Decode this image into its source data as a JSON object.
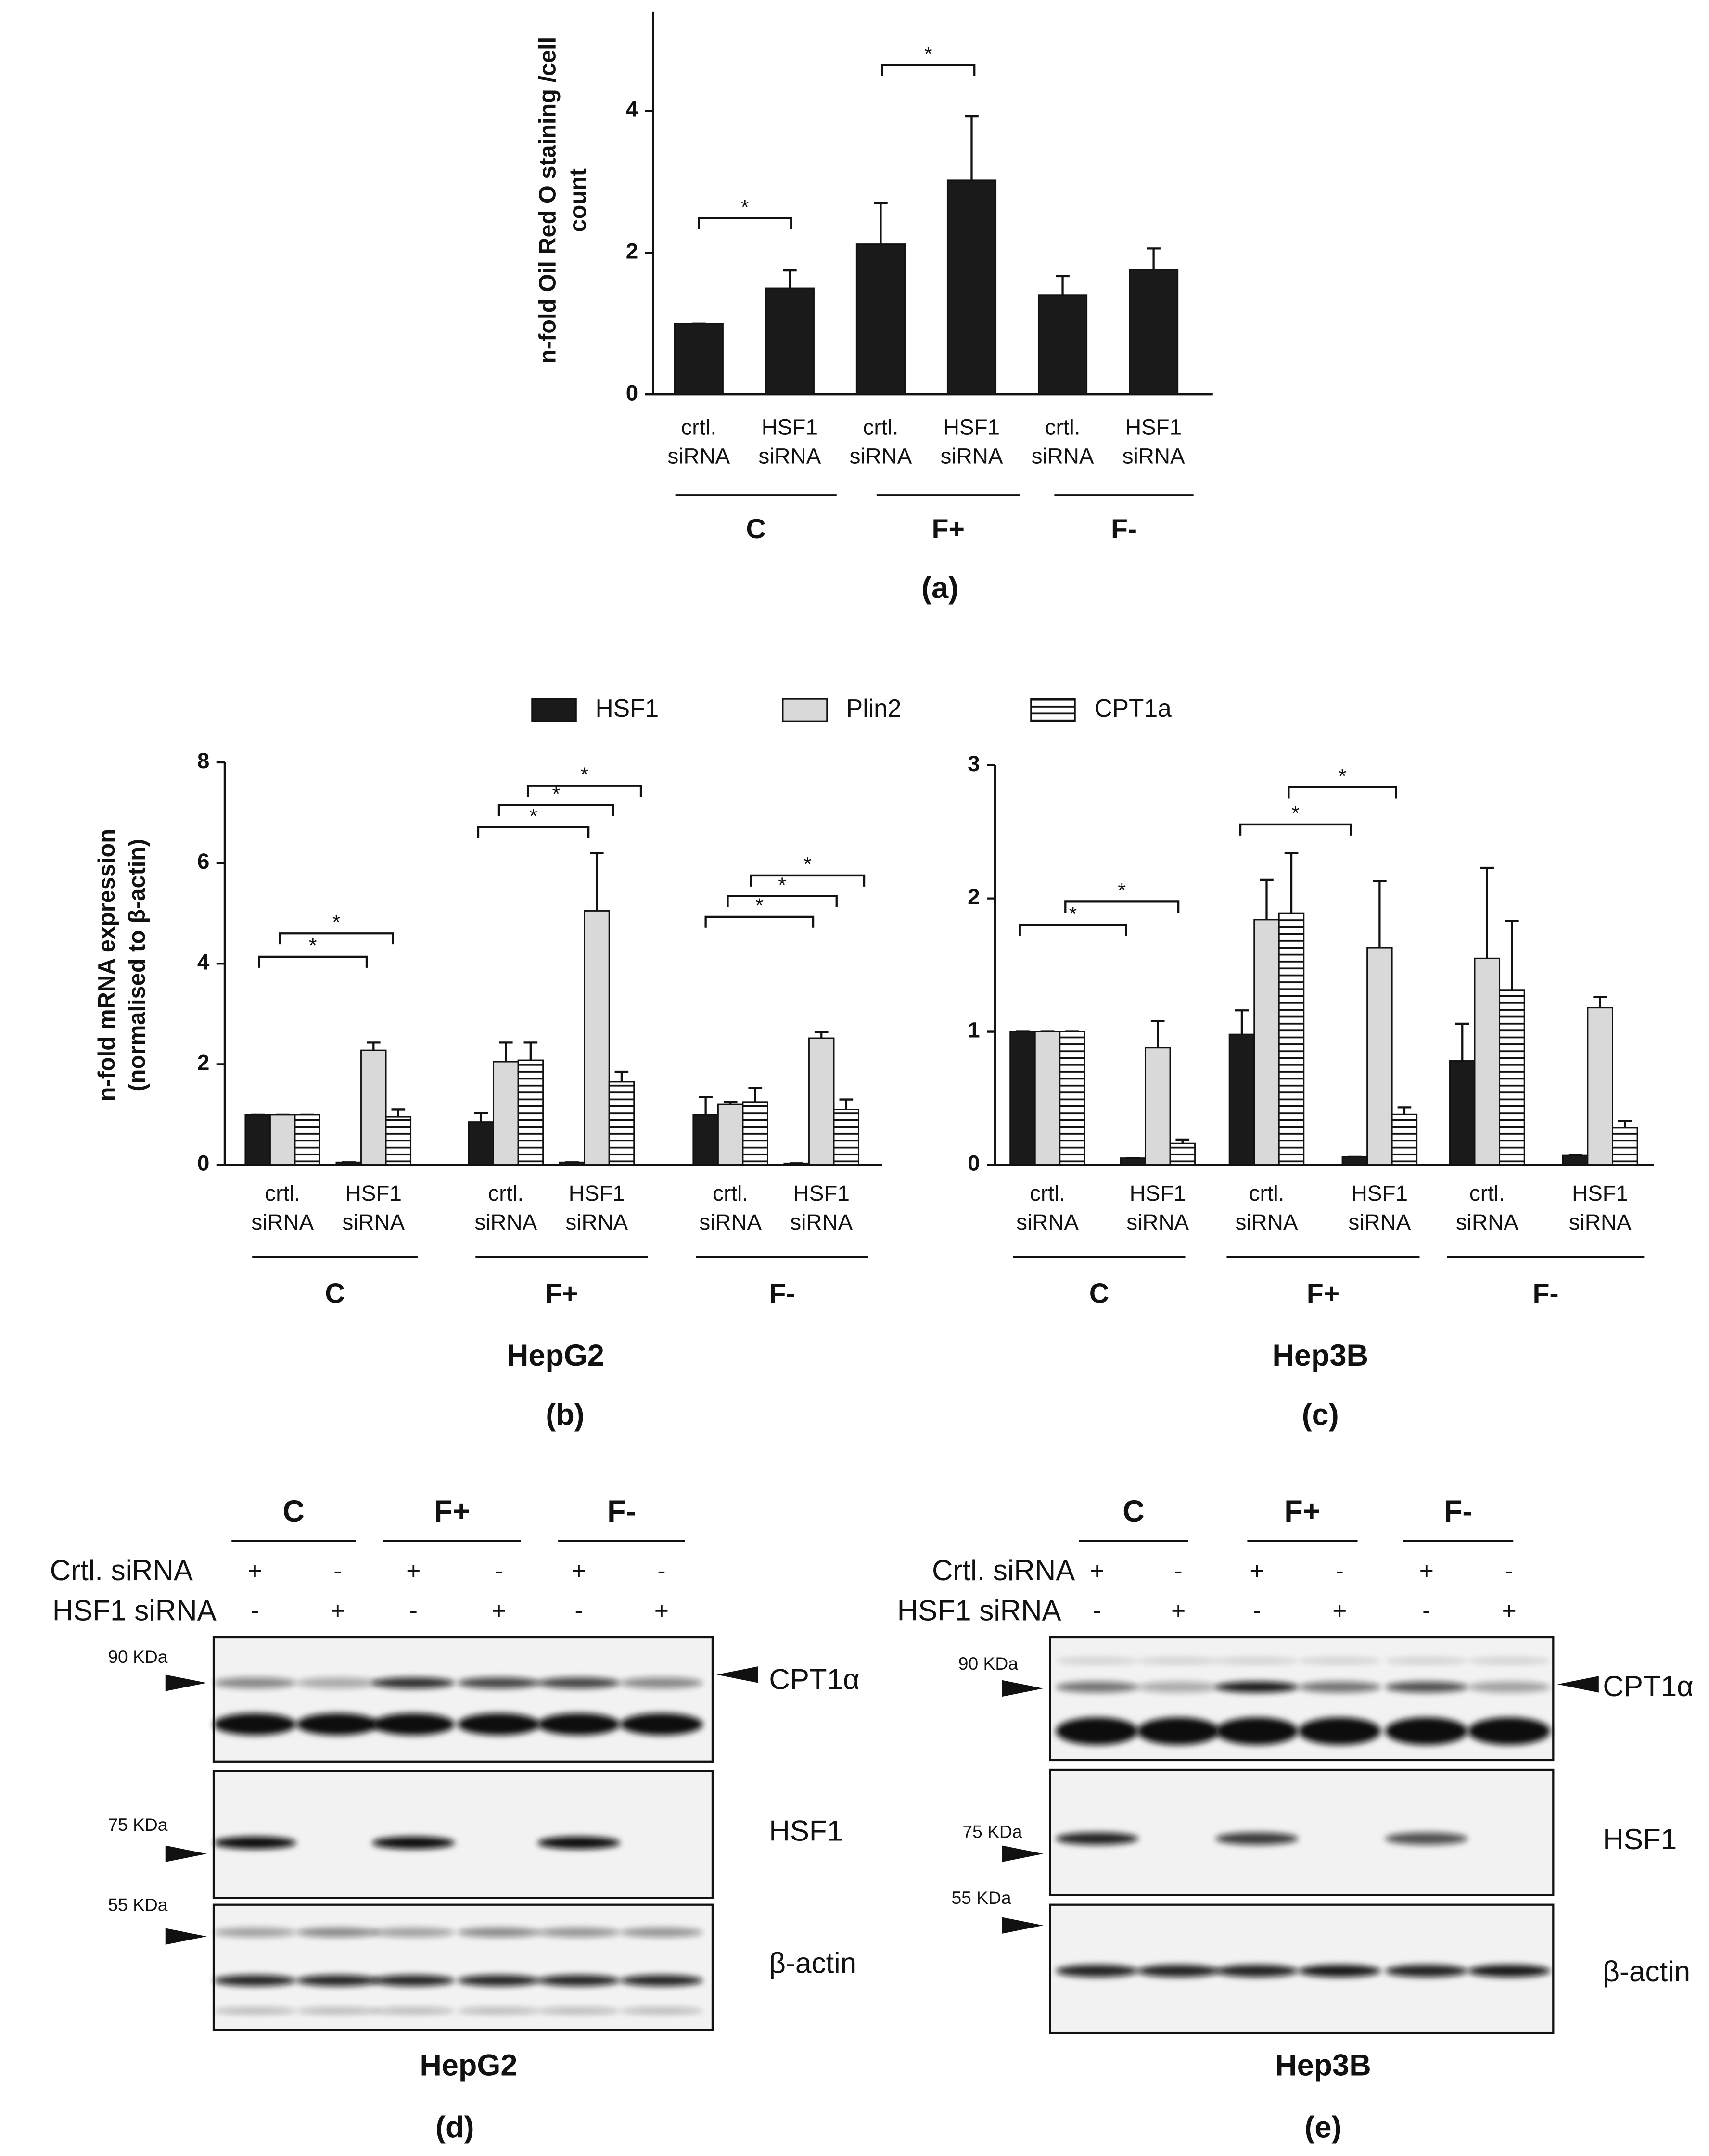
{
  "chart_data": [
    {
      "type": "bar",
      "panel": "(a)",
      "y_label": "n-fold Oil Red O staining /cell count",
      "categories": [
        "crtl. siRNA",
        "HSF1 siRNA",
        "crtl. siRNA",
        "HSF1 siRNA",
        "crtl. siRNA",
        "HSF1 siRNA"
      ],
      "groups": [
        "C",
        "F+",
        "F-"
      ],
      "values": [
        1.0,
        1.5,
        2.12,
        3.02,
        1.4,
        1.76
      ],
      "errors": [
        0,
        0.25,
        0.58,
        0.9,
        0.27,
        0.3
      ],
      "color": "#1a1a1a",
      "ylim": [
        0,
        5.4
      ],
      "yticks": [
        0,
        2,
        4
      ],
      "annotations": [
        "*",
        "*"
      ]
    },
    {
      "type": "bar",
      "panel": "(b)",
      "cell_line": "HepG2",
      "y_label": "n-fold mRNA expression (normalised to β-actin)",
      "categories": [
        "crtl. siRNA",
        "HSF1 siRNA",
        "crtl. siRNA",
        "HSF1 siRNA",
        "crtl. siRNA",
        "HSF1 siRNA"
      ],
      "groups": [
        "C",
        "F+",
        "F-"
      ],
      "series": [
        {
          "name": "HSF1",
          "color": "#1a1a1a",
          "values": [
            1.0,
            0.05,
            0.85,
            0.05,
            1.0,
            0.03
          ],
          "errors": [
            0,
            0,
            0.18,
            0,
            0.35,
            0
          ]
        },
        {
          "name": "Plin2",
          "color": "#d9d9d9",
          "values": [
            1.0,
            2.28,
            2.05,
            5.05,
            1.2,
            2.52
          ],
          "errors": [
            0,
            0.15,
            0.38,
            1.15,
            0.05,
            0.12
          ]
        },
        {
          "name": "CPT1a",
          "color": "#ffffff",
          "hatch": "horizontal",
          "values": [
            1.0,
            0.95,
            2.08,
            1.65,
            1.25,
            1.1
          ],
          "errors": [
            0,
            0.15,
            0.35,
            0.2,
            0.28,
            0.2
          ]
        }
      ],
      "ylim": [
        0,
        8
      ],
      "yticks": [
        0,
        2,
        4,
        6,
        8
      ],
      "annotations": [
        "*",
        "*",
        "*",
        "*",
        "*",
        "*",
        "*",
        "*"
      ]
    },
    {
      "type": "bar",
      "panel": "(c)",
      "cell_line": "Hep3B",
      "categories": [
        "crtl. siRNA",
        "HSF1 siRNA",
        "crtl. siRNA",
        "HSF1 siRNA",
        "crtl. siRNA",
        "HSF1 siRNA"
      ],
      "groups": [
        "C",
        "F+",
        "F-"
      ],
      "series": [
        {
          "color": "#1a1a1a",
          "values": [
            1.0,
            0.05,
            0.98,
            0.06,
            0.78,
            0.07
          ],
          "errors": [
            0,
            0,
            0.18,
            0,
            0.28,
            0
          ]
        },
        {
          "color": "#d9d9d9",
          "values": [
            1.0,
            0.88,
            1.84,
            1.63,
            1.55,
            1.18
          ],
          "errors": [
            0,
            0.2,
            0.3,
            0.5,
            0.68,
            0.08
          ]
        },
        {
          "color": "#ffffff",
          "hatch": "horizontal",
          "values": [
            1.0,
            0.16,
            1.89,
            0.38,
            1.31,
            0.28
          ],
          "errors": [
            0,
            0.03,
            0.45,
            0.05,
            0.52,
            0.05
          ]
        }
      ],
      "ylim": [
        0,
        3
      ],
      "yticks": [
        0,
        1,
        2,
        3
      ],
      "annotations": [
        "*",
        "*",
        "*",
        "*"
      ]
    }
  ],
  "blots": [
    {
      "groups": [
        "C",
        "F+",
        "F-"
      ],
      "rows": [
        {
          "label": "Crtl. siRNA",
          "signs": [
            "+",
            "-",
            "+",
            "-",
            "+",
            "-"
          ]
        },
        {
          "label": "HSF1 siRNA",
          "signs": [
            "-",
            "+",
            "-",
            "+",
            "-",
            "+"
          ]
        }
      ],
      "markers": [
        "90 KDa",
        "75 KDa",
        "55 KDa"
      ],
      "proteins": [
        "CPT1α",
        "HSF1",
        "β-actin"
      ],
      "cell_line": "HepG2",
      "panel": "(d)"
    },
    {
      "groups": [
        "C",
        "F+",
        "F-"
      ],
      "rows": [
        {
          "label": "Crtl. siRNA",
          "signs": [
            "+",
            "-",
            "+",
            "-",
            "+",
            "-"
          ]
        },
        {
          "label": "HSF1 siRNA",
          "signs": [
            "-",
            "+",
            "-",
            "+",
            "-",
            "+"
          ]
        }
      ],
      "markers": [
        "90 KDa",
        "75 KDa",
        "55 KDa"
      ],
      "proteins": [
        "CPT1α",
        "HSF1",
        "β-actin"
      ],
      "cell_line": "Hep3B",
      "panel": "(e)"
    }
  ]
}
